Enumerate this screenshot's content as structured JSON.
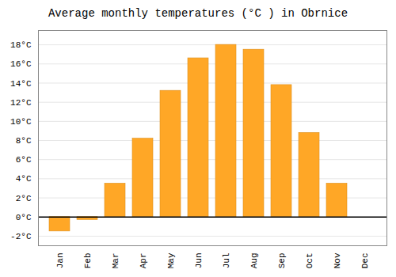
{
  "chart_data": {
    "type": "bar",
    "title": "Average monthly temperatures (°C ) in Obrnice",
    "categories": [
      "Jan",
      "Feb",
      "Mar",
      "Apr",
      "May",
      "Jun",
      "Jul",
      "Aug",
      "Sep",
      "Oct",
      "Nov",
      "Dec"
    ],
    "values": [
      -1.5,
      -0.3,
      3.5,
      8.2,
      13.2,
      16.6,
      18.0,
      17.5,
      13.8,
      8.8,
      3.5,
      0.0
    ],
    "color": "#FFA726",
    "ylim": [
      -3,
      19.5
    ],
    "yticks": [
      {
        "value": -2,
        "label": "-2°C"
      },
      {
        "value": 0,
        "label": "0°C"
      },
      {
        "value": 2,
        "label": "2°C"
      },
      {
        "value": 4,
        "label": "4°C"
      },
      {
        "value": 6,
        "label": "6°C"
      },
      {
        "value": 8,
        "label": "8°C"
      },
      {
        "value": 10,
        "label": "10°C"
      },
      {
        "value": 12,
        "label": "12°C"
      },
      {
        "value": 14,
        "label": "14°C"
      },
      {
        "value": 16,
        "label": "16°C"
      },
      {
        "value": 18,
        "label": "18°C"
      }
    ],
    "grid": true
  }
}
